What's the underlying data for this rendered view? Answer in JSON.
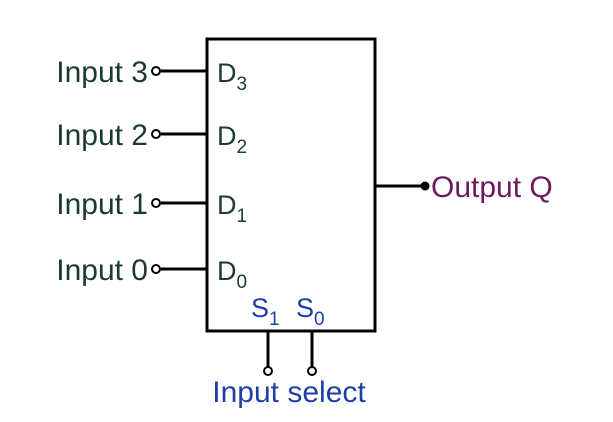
{
  "colors": {
    "input_label": "#1c3a34",
    "output_label": "#6a1b5e",
    "select_label": "#1f3fa6",
    "stroke": "#000000"
  },
  "inputs": [
    {
      "label": "Input 3",
      "pin": "D",
      "index": "3"
    },
    {
      "label": "Input 2",
      "pin": "D",
      "index": "2"
    },
    {
      "label": "Input 1",
      "pin": "D",
      "index": "1"
    },
    {
      "label": "Input 0",
      "pin": "D",
      "index": "0"
    }
  ],
  "output": {
    "label": "Output Q"
  },
  "select": {
    "pins": [
      {
        "pin": "S",
        "index": "1"
      },
      {
        "pin": "S",
        "index": "0"
      }
    ],
    "label": "Input select"
  }
}
